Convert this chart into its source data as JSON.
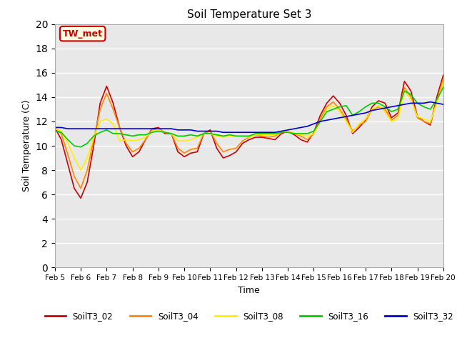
{
  "title": "Soil Temperature Set 3",
  "xlabel": "Time",
  "ylabel": "Soil Temperature (C)",
  "ylim": [
    0,
    20
  ],
  "yticks": [
    0,
    2,
    4,
    6,
    8,
    10,
    12,
    14,
    16,
    18,
    20
  ],
  "xtick_positions": [
    0,
    4,
    8,
    12,
    16,
    20,
    24,
    28,
    32,
    36,
    40,
    44,
    48,
    52,
    56,
    60
  ],
  "xtick_labels": [
    "Feb 5",
    "Feb 6",
    "Feb 7",
    "Feb 8",
    "Feb 9",
    "Feb 10",
    "Feb 11",
    "Feb 12",
    "Feb 13",
    "Feb 14",
    "Feb 15",
    "Feb 16",
    "Feb 17",
    "Feb 18",
    "Feb 19",
    "Feb 20"
  ],
  "annotation_text": "TW_met",
  "bg_color": "#e8e8e8",
  "series": {
    "SoilT3_02": {
      "color": "#cc0000",
      "x": [
        0,
        1,
        2,
        3,
        4,
        5,
        6,
        7,
        8,
        9,
        10,
        11,
        12,
        13,
        14,
        15,
        16,
        17,
        18,
        19,
        20,
        21,
        22,
        23,
        24,
        25,
        26,
        27,
        28,
        29,
        30,
        31,
        32,
        33,
        34,
        35,
        36,
        37,
        38,
        39,
        40,
        41,
        42,
        43,
        44,
        45,
        46,
        47,
        48,
        49,
        50,
        51,
        52,
        53,
        54,
        55,
        56,
        57,
        58,
        59,
        60
      ],
      "y": [
        11.5,
        10.5,
        8.5,
        6.5,
        5.7,
        7.0,
        10.0,
        13.5,
        14.9,
        13.5,
        11.5,
        10.0,
        9.1,
        9.5,
        10.5,
        11.4,
        11.5,
        11.0,
        11.0,
        9.5,
        9.1,
        9.4,
        9.5,
        11.0,
        11.3,
        9.8,
        9.0,
        9.2,
        9.5,
        10.2,
        10.5,
        10.7,
        10.7,
        10.6,
        10.5,
        11.0,
        11.2,
        10.9,
        10.5,
        10.3,
        11.1,
        12.5,
        13.5,
        14.1,
        13.5,
        12.5,
        11.0,
        11.5,
        12.1,
        13.2,
        13.7,
        13.5,
        12.3,
        12.7,
        15.3,
        14.5,
        12.4,
        12.0,
        11.7,
        14.0,
        15.8
      ]
    },
    "SoilT3_04": {
      "color": "#ff8800",
      "x": [
        0,
        1,
        2,
        3,
        4,
        5,
        6,
        7,
        8,
        9,
        10,
        11,
        12,
        13,
        14,
        15,
        16,
        17,
        18,
        19,
        20,
        21,
        22,
        23,
        24,
        25,
        26,
        27,
        28,
        29,
        30,
        31,
        32,
        33,
        34,
        35,
        36,
        37,
        38,
        39,
        40,
        41,
        42,
        43,
        44,
        45,
        46,
        47,
        48,
        49,
        50,
        51,
        52,
        53,
        54,
        55,
        56,
        57,
        58,
        59,
        60
      ],
      "y": [
        11.5,
        11.0,
        9.3,
        7.5,
        6.5,
        8.0,
        10.5,
        13.0,
        14.3,
        13.0,
        11.5,
        10.2,
        9.5,
        9.8,
        10.5,
        11.3,
        11.4,
        11.1,
        11.0,
        9.8,
        9.4,
        9.7,
        9.8,
        11.0,
        11.2,
        10.2,
        9.5,
        9.7,
        9.8,
        10.4,
        10.7,
        10.9,
        10.8,
        10.7,
        10.8,
        11.1,
        11.2,
        11.0,
        10.8,
        10.5,
        11.0,
        12.2,
        13.2,
        13.6,
        13.0,
        12.2,
        11.2,
        11.7,
        12.0,
        13.0,
        13.2,
        13.0,
        12.1,
        12.5,
        14.8,
        14.0,
        12.3,
        12.0,
        11.8,
        13.7,
        15.5
      ]
    },
    "SoilT3_08": {
      "color": "#ffee00",
      "x": [
        0,
        1,
        2,
        3,
        4,
        5,
        6,
        7,
        8,
        9,
        10,
        11,
        12,
        13,
        14,
        15,
        16,
        17,
        18,
        19,
        20,
        21,
        22,
        23,
        24,
        25,
        26,
        27,
        28,
        29,
        30,
        31,
        32,
        33,
        34,
        35,
        36,
        37,
        38,
        39,
        40,
        41,
        42,
        43,
        44,
        45,
        46,
        47,
        48,
        49,
        50,
        51,
        52,
        53,
        54,
        55,
        56,
        57,
        58,
        59,
        60
      ],
      "y": [
        11.4,
        11.2,
        10.2,
        9.0,
        8.0,
        9.0,
        10.7,
        12.0,
        12.2,
        11.8,
        10.4,
        10.5,
        10.4,
        10.5,
        10.7,
        11.2,
        11.3,
        11.1,
        11.0,
        10.4,
        10.4,
        10.5,
        10.7,
        11.0,
        11.0,
        10.8,
        10.7,
        10.8,
        10.8,
        10.8,
        10.7,
        10.9,
        10.9,
        10.9,
        10.9,
        11.1,
        11.2,
        11.0,
        10.9,
        10.8,
        11.0,
        12.0,
        13.0,
        13.3,
        12.8,
        12.0,
        11.1,
        11.8,
        12.2,
        13.0,
        13.3,
        12.8,
        12.0,
        12.2,
        14.5,
        13.8,
        12.4,
        12.2,
        12.0,
        13.5,
        15.2
      ]
    },
    "SoilT3_16": {
      "color": "#00cc00",
      "x": [
        0,
        1,
        2,
        3,
        4,
        5,
        6,
        7,
        8,
        9,
        10,
        11,
        12,
        13,
        14,
        15,
        16,
        17,
        18,
        19,
        20,
        21,
        22,
        23,
        24,
        25,
        26,
        27,
        28,
        29,
        30,
        31,
        32,
        33,
        34,
        35,
        36,
        37,
        38,
        39,
        40,
        41,
        42,
        43,
        44,
        45,
        46,
        47,
        48,
        49,
        50,
        51,
        52,
        53,
        54,
        55,
        56,
        57,
        58,
        59,
        60
      ],
      "y": [
        11.2,
        11.1,
        10.5,
        10.0,
        9.9,
        10.2,
        10.8,
        11.1,
        11.3,
        11.0,
        11.0,
        10.9,
        10.8,
        10.9,
        10.9,
        11.1,
        11.2,
        11.1,
        11.0,
        10.8,
        10.8,
        10.9,
        10.8,
        11.0,
        11.0,
        10.9,
        10.8,
        10.9,
        10.8,
        10.8,
        10.8,
        11.0,
        11.0,
        11.0,
        11.0,
        11.1,
        11.1,
        11.0,
        11.0,
        11.0,
        11.2,
        12.0,
        12.8,
        13.0,
        13.2,
        13.3,
        12.5,
        12.8,
        13.2,
        13.5,
        13.5,
        13.2,
        12.8,
        13.0,
        14.5,
        14.2,
        13.5,
        13.2,
        13.0,
        13.8,
        14.8
      ]
    },
    "SoilT3_32": {
      "color": "#0000cc",
      "x": [
        0,
        1,
        2,
        3,
        4,
        5,
        6,
        7,
        8,
        9,
        10,
        11,
        12,
        13,
        14,
        15,
        16,
        17,
        18,
        19,
        20,
        21,
        22,
        23,
        24,
        25,
        26,
        27,
        28,
        29,
        30,
        31,
        32,
        33,
        34,
        35,
        36,
        37,
        38,
        39,
        40,
        41,
        42,
        43,
        44,
        45,
        46,
        47,
        48,
        49,
        50,
        51,
        52,
        53,
        54,
        55,
        56,
        57,
        58,
        59,
        60
      ],
      "y": [
        11.5,
        11.5,
        11.4,
        11.4,
        11.4,
        11.4,
        11.4,
        11.4,
        11.4,
        11.4,
        11.4,
        11.4,
        11.4,
        11.4,
        11.4,
        11.4,
        11.4,
        11.4,
        11.4,
        11.3,
        11.3,
        11.3,
        11.2,
        11.2,
        11.2,
        11.2,
        11.1,
        11.1,
        11.1,
        11.1,
        11.1,
        11.1,
        11.1,
        11.1,
        11.1,
        11.2,
        11.3,
        11.4,
        11.5,
        11.6,
        11.8,
        12.0,
        12.1,
        12.2,
        12.3,
        12.4,
        12.5,
        12.6,
        12.7,
        12.9,
        13.0,
        13.1,
        13.2,
        13.3,
        13.4,
        13.5,
        13.5,
        13.5,
        13.6,
        13.5,
        13.4
      ]
    }
  }
}
